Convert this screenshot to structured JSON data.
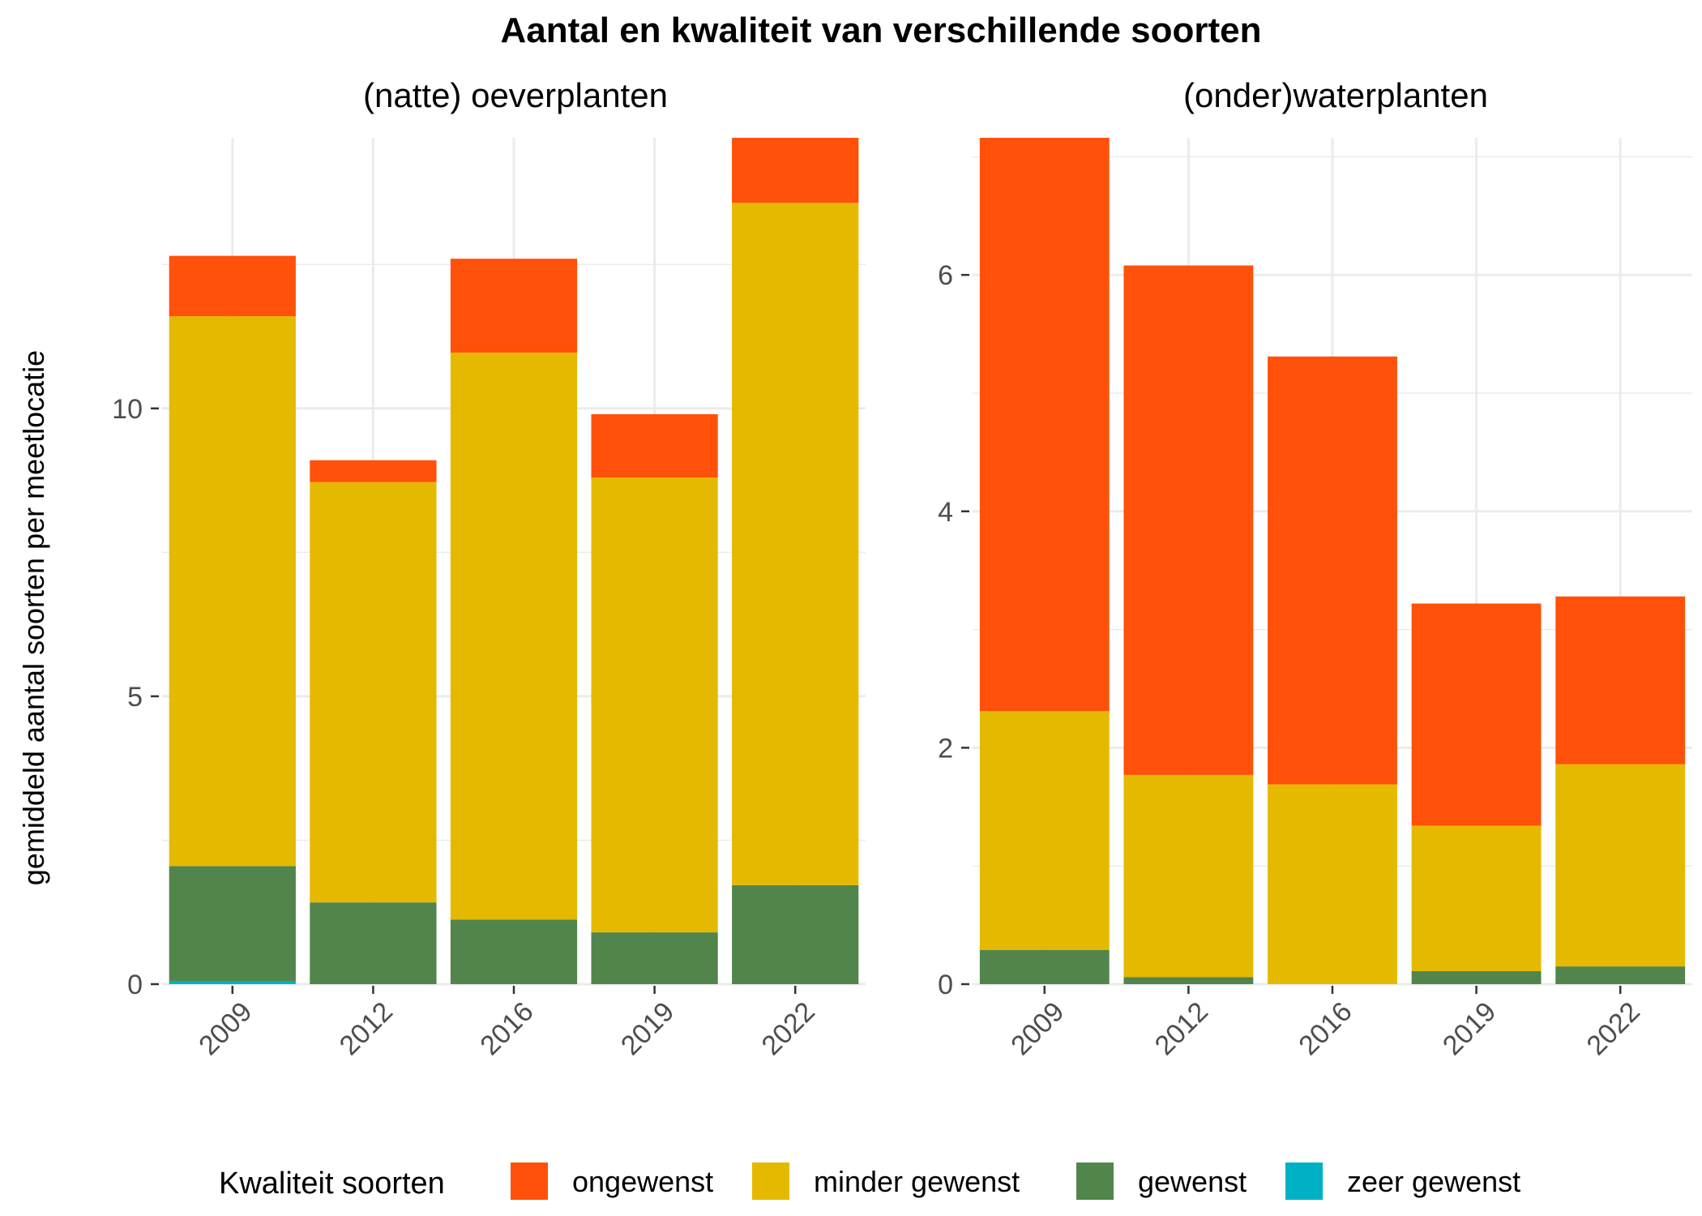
{
  "chart_data": {
    "type": "bar",
    "title": "Aantal en kwaliteit van verschillende soorten",
    "ylabel": "gemiddeld aantal soorten per meetlocatie",
    "legend": {
      "title": "Kwaliteit soorten",
      "placement": "bottom",
      "entries": [
        "ongewenst",
        "minder gewenst",
        "gewenst",
        "zeer gewenst"
      ]
    },
    "colors": {
      "ongewenst": "#ff510a",
      "minder gewenst": "#e5b900",
      "gewenst": "#52854c",
      "zeer gewenst": "#00b1c6"
    },
    "stacked": true,
    "grid": true,
    "panels": [
      {
        "subtitle": "(natte) oeverplanten",
        "categories": [
          "2009",
          "2012",
          "2016",
          "2019",
          "2022"
        ],
        "yticks": [
          "0",
          "5",
          "10"
        ],
        "ylim": [
          0,
          14.7
        ],
        "series": [
          {
            "name": "zeer gewenst",
            "values": [
              0.05,
              0,
              0,
              0,
              0
            ]
          },
          {
            "name": "gewenst",
            "values": [
              2.0,
              1.42,
              1.12,
              0.9,
              1.72
            ]
          },
          {
            "name": "minder gewenst",
            "values": [
              9.55,
              7.3,
              9.85,
              7.9,
              11.85
            ]
          },
          {
            "name": "ongewenst",
            "values": [
              1.05,
              0.38,
              1.63,
              1.1,
              1.13
            ]
          }
        ]
      },
      {
        "subtitle": "(onder)waterplanten",
        "categories": [
          "2009",
          "2012",
          "2016",
          "2019",
          "2022"
        ],
        "yticks": [
          "0",
          "2",
          "4",
          "6"
        ],
        "ylim": [
          0,
          7.16
        ],
        "series": [
          {
            "name": "zeer gewenst",
            "values": [
              0,
              0,
              0,
              0,
              0
            ]
          },
          {
            "name": "gewenst",
            "values": [
              0.29,
              0.06,
              0,
              0.11,
              0.15
            ]
          },
          {
            "name": "minder gewenst",
            "values": [
              2.02,
              1.71,
              1.69,
              1.23,
              1.71
            ]
          },
          {
            "name": "ongewenst",
            "values": [
              4.85,
              4.31,
              3.62,
              1.88,
              1.42
            ]
          }
        ]
      }
    ]
  }
}
